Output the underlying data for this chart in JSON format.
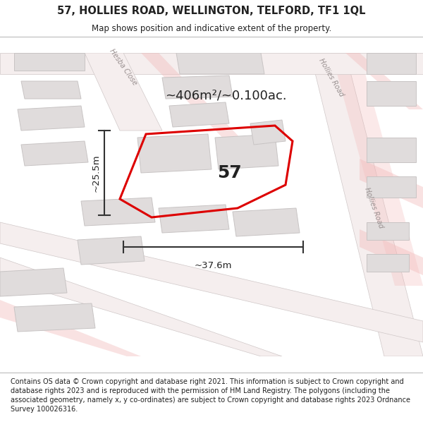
{
  "title": "57, HOLLIES ROAD, WELLINGTON, TELFORD, TF1 1QL",
  "subtitle": "Map shows position and indicative extent of the property.",
  "footer": "Contains OS data © Crown copyright and database right 2021. This information is subject to Crown copyright and database rights 2023 and is reproduced with the permission of HM Land Registry. The polygons (including the associated geometry, namely x, y co-ordinates) are subject to Crown copyright and database rights 2023 Ordnance Survey 100026316.",
  "area_label": "~406m²/~0.100ac.",
  "width_label": "~37.6m",
  "height_label": "~25.5m",
  "number_label": "57",
  "bg_color": "#ffffff",
  "map_bg": "#ffffff",
  "road_outline_color": "#d0c8c8",
  "road_fill_color": "#f5eeee",
  "road_pink_color": "#f2b8b8",
  "building_color": "#e0dcdc",
  "building_edge": "#c8c4c4",
  "highlight_color": "#dd0000",
  "text_color": "#222222",
  "road_label_color": "#999090",
  "dim_line_color": "#333333"
}
